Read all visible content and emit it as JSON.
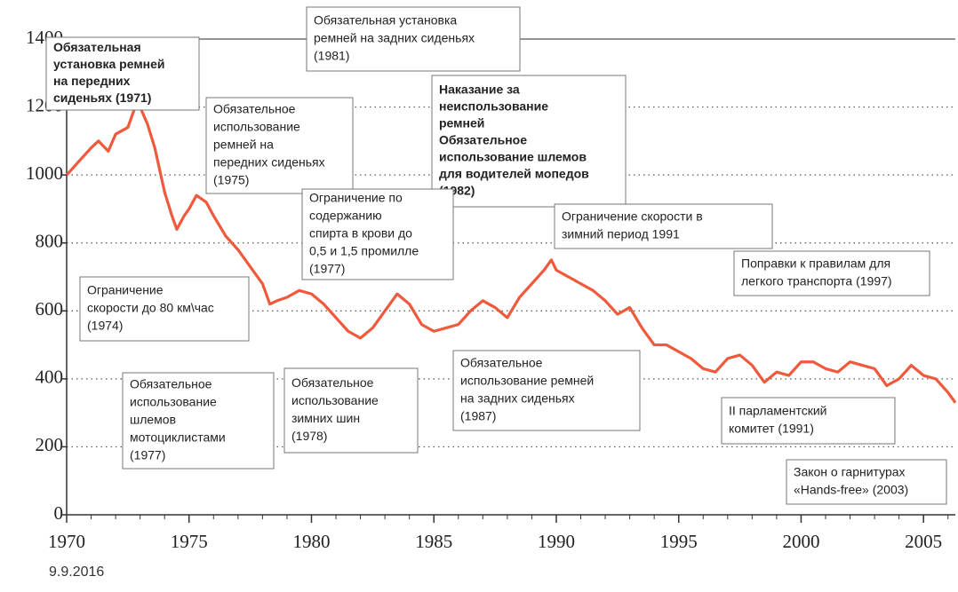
{
  "chart_data": {
    "type": "line",
    "x": [
      1970,
      1970.5,
      1971,
      1971.3,
      1971.7,
      1972,
      1972.5,
      1972.8,
      1973,
      1973.3,
      1973.6,
      1974,
      1974.3,
      1974.5,
      1974.8,
      1975,
      1975.3,
      1975.7,
      1976,
      1976.5,
      1977,
      1977.5,
      1978,
      1978.3,
      1978.6,
      1979,
      1979.5,
      1980,
      1980.5,
      1981,
      1981.5,
      1982,
      1982.5,
      1983,
      1983.5,
      1984,
      1984.5,
      1985,
      1985.5,
      1986,
      1986.5,
      1987,
      1987.5,
      1988,
      1988.5,
      1989,
      1989.5,
      1989.8,
      1990,
      1990.5,
      1991,
      1991.5,
      1992,
      1992.5,
      1993,
      1993.5,
      1994,
      1994.5,
      1995,
      1995.5,
      1996,
      1996.5,
      1997,
      1997.5,
      1998,
      1998.5,
      1999,
      1999.5,
      2000,
      2000.5,
      2001,
      2001.5,
      2002,
      2002.5,
      2003,
      2003.5,
      2004,
      2004.5,
      2005,
      2005.5,
      2006,
      2006.3
    ],
    "series": [
      {
        "color": "#f05a3c",
        "values": [
          1000,
          1040,
          1080,
          1100,
          1070,
          1120,
          1140,
          1200,
          1200,
          1150,
          1080,
          950,
          880,
          840,
          880,
          900,
          940,
          920,
          880,
          820,
          780,
          730,
          680,
          620,
          630,
          640,
          660,
          650,
          620,
          580,
          540,
          520,
          550,
          600,
          650,
          620,
          560,
          540,
          550,
          560,
          600,
          630,
          610,
          580,
          640,
          680,
          720,
          750,
          720,
          700,
          680,
          660,
          630,
          590,
          610,
          550,
          500,
          500,
          480,
          460,
          430,
          420,
          460,
          470,
          440,
          390,
          420,
          410,
          450,
          450,
          430,
          420,
          450,
          440,
          430,
          380,
          400,
          440,
          410,
          400,
          360,
          330
        ]
      }
    ],
    "xlim": [
      1970,
      2006.3
    ],
    "ylim": [
      0,
      1400
    ],
    "xticks": [
      1970,
      1975,
      1980,
      1985,
      1990,
      1995,
      2000,
      2005
    ],
    "yticks": [
      0,
      200,
      400,
      600,
      800,
      1000,
      1200,
      1400
    ],
    "grid": true,
    "annotations": [
      {
        "lines": [
          "Обязательная",
          "установка ремней",
          "на передних",
          "сиденьях (1971)"
        ]
      },
      {
        "lines": [
          "Обязательная установка",
          "ремней  на задних сиденьях",
          "(1981)"
        ]
      },
      {
        "lines": [
          "Обязательное",
          "использование",
          "ремней на",
          "передних сиденьях",
          "(1975)"
        ]
      },
      {
        "lines": [
          "Наказание за",
          "неиспользование",
          "ремней",
          "Обязательное",
          "использование шлемов",
          "для водителей мопедов",
          "(1982)"
        ]
      },
      {
        "lines": [
          "Ограничение по",
          "содержанию",
          "спирта  в крови до",
          "0,5 и  1,5 промилле",
          "(1977)"
        ]
      },
      {
        "lines": [
          "Ограничение скорости в",
          "зимний период 1991"
        ]
      },
      {
        "lines": [
          "Поправки к правилам для",
          "легкого транспорта (1997)"
        ]
      },
      {
        "lines": [
          "Ограничение",
          "скорости до  80 км\\час",
          "(1974)"
        ]
      },
      {
        "lines": [
          "Обязательное",
          "использование",
          "шлемов",
          "мотоциклистами",
          "(1977)"
        ]
      },
      {
        "lines": [
          "Обязательное",
          "использование",
          "зимних шин",
          "(1978)"
        ]
      },
      {
        "lines": [
          "Обязательное",
          "использование  ремней",
          "на задних сиденьях",
          "(1987)"
        ]
      },
      {
        "lines": [
          "II парламентский",
          "комитет (1991)"
        ]
      },
      {
        "lines": [
          "Закон о гарнитурах",
          "«Hands-free»  (2003)"
        ]
      }
    ],
    "footer": "9.9.2016"
  }
}
